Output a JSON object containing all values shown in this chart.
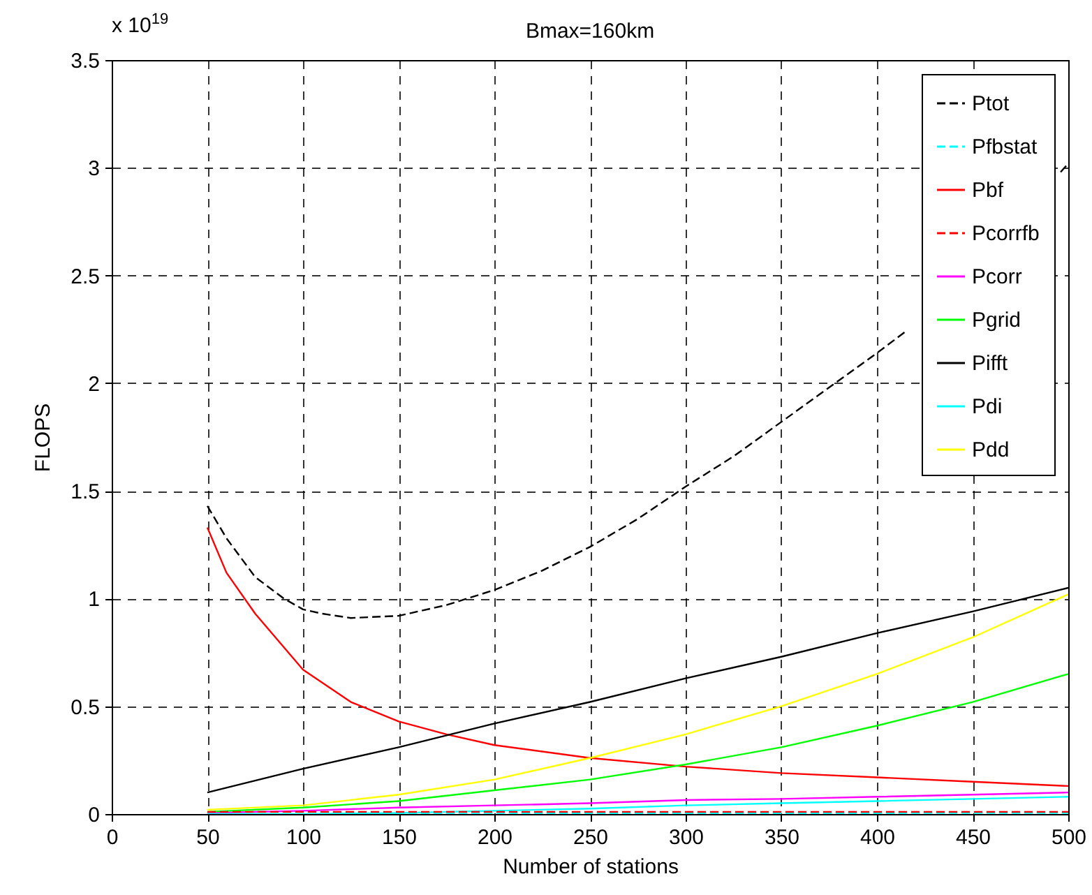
{
  "chart_data": {
    "type": "line",
    "title": "Bmax=160km",
    "xlabel": "Number of stations",
    "ylabel": "FLOPS",
    "annotations": [
      "x 10$^{19}$"
    ],
    "x": [
      50,
      100,
      150,
      200,
      250,
      300,
      350,
      400,
      450,
      500
    ],
    "xlim": [
      0,
      500
    ],
    "xticks": [
      0,
      50,
      100,
      150,
      200,
      250,
      300,
      350,
      400,
      450,
      500
    ],
    "ylim": [
      0,
      3.5
    ],
    "yticks": [
      0,
      0.5,
      1,
      1.5,
      2,
      2.5,
      3,
      3.5
    ],
    "grid": true,
    "legend": "top right",
    "series": [
      {
        "name": "Ptot",
        "color": "#000000",
        "line_style": "dashed",
        "x": [
          50,
          60,
          75,
          90,
          100,
          110,
          125,
          150,
          175,
          200,
          225,
          250,
          275,
          300,
          325,
          350,
          375,
          400,
          415,
          450,
          496,
          500
        ],
        "values": [
          1.43,
          1.28,
          1.1,
          1.0,
          0.95,
          0.93,
          0.91,
          0.92,
          0.97,
          1.04,
          1.13,
          1.24,
          1.37,
          1.52,
          1.66,
          1.82,
          1.98,
          2.14,
          2.24,
          null,
          2.98,
          3.02
        ]
      },
      {
        "name": "Pfbstat",
        "color": "#00ffff",
        "line_style": "dashed",
        "values": [
          0,
          0,
          0.002,
          0.002,
          0.003,
          0.003,
          0.004,
          0.004,
          0.005,
          0.005
        ]
      },
      {
        "name": "Pbf",
        "color": "#ff0000",
        "line_style": "solid",
        "x": [
          50,
          60,
          75,
          100,
          125,
          150,
          175,
          200,
          250,
          300,
          350,
          400,
          450,
          500
        ],
        "values": [
          1.33,
          1.12,
          0.93,
          0.67,
          0.52,
          0.43,
          0.37,
          0.32,
          0.26,
          0.22,
          0.19,
          0.17,
          0.15,
          0.13
        ]
      },
      {
        "name": "Pcorrfb",
        "color": "#ff0000",
        "line_style": "dashed",
        "values": [
          0.01,
          0.01,
          0.01,
          0.01,
          0.01,
          0.01,
          0.01,
          0.01,
          0.01,
          0.01
        ]
      },
      {
        "name": "Pcorr",
        "color": "#ff00ff",
        "line_style": "solid",
        "values": [
          0.005,
          0.015,
          0.03,
          0.04,
          0.05,
          0.065,
          0.07,
          0.08,
          0.09,
          0.1
        ]
      },
      {
        "name": "Pgrid",
        "color": "#00ff00",
        "line_style": "solid",
        "values": [
          0.01,
          0.03,
          0.06,
          0.11,
          0.16,
          0.23,
          0.31,
          0.41,
          0.52,
          0.65
        ]
      },
      {
        "name": "Pifft",
        "color": "#000000",
        "line_style": "solid",
        "values": [
          0.1,
          0.21,
          0.31,
          0.42,
          0.52,
          0.63,
          0.73,
          0.84,
          0.94,
          1.05
        ]
      },
      {
        "name": "Pdi",
        "color": "#00ffff",
        "line_style": "solid",
        "values": [
          0,
          0,
          0.005,
          0.015,
          0.025,
          0.04,
          0.05,
          0.06,
          0.07,
          0.08
        ]
      },
      {
        "name": "Pdd",
        "color": "#ffff00",
        "line_style": "solid",
        "values": [
          0.02,
          0.04,
          0.09,
          0.16,
          0.26,
          0.37,
          0.5,
          0.65,
          0.82,
          1.02
        ]
      }
    ]
  }
}
